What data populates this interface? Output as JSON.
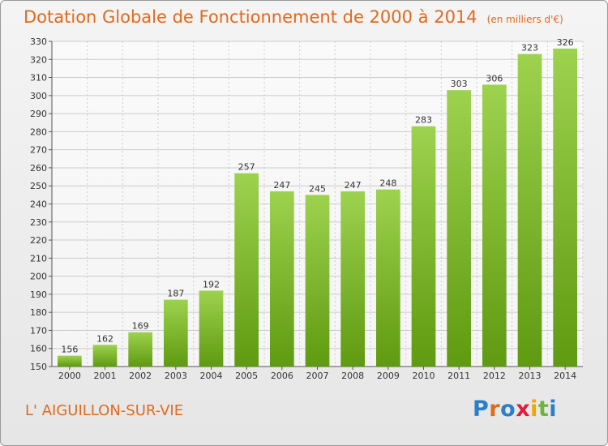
{
  "header": {
    "title": "Dotation Globale de Fonctionnement de 2000 à 2014",
    "unit": "(en milliers d'€)"
  },
  "footer": {
    "city": "L' AIGUILLON-SUR-VIE",
    "logo": "Proxiti"
  },
  "colors": {
    "title": "#e06a1c",
    "bar_top": "#9dd24e",
    "bar_bottom": "#5f9a10",
    "grid": "#cccccc",
    "logo_letters": [
      "#2a7fc9",
      "#e06a1c",
      "#2a7fc9",
      "#e21c3c",
      "#f0a500",
      "#6db33f",
      "#2a7fc9"
    ]
  },
  "chart_data": {
    "type": "bar",
    "title": "Dotation Globale de Fonctionnement de 2000 à 2014",
    "subtitle": "(en milliers d'€)",
    "xlabel": "",
    "ylabel": "",
    "categories": [
      "2000",
      "2001",
      "2002",
      "2003",
      "2004",
      "2005",
      "2006",
      "2007",
      "2008",
      "2009",
      "2010",
      "2011",
      "2012",
      "2013",
      "2014"
    ],
    "values": [
      156,
      162,
      169,
      187,
      192,
      257,
      247,
      245,
      247,
      248,
      283,
      303,
      306,
      323,
      326
    ],
    "ylim": [
      150,
      330
    ],
    "yticks": [
      150,
      160,
      170,
      180,
      190,
      200,
      210,
      220,
      230,
      240,
      250,
      260,
      270,
      280,
      290,
      300,
      310,
      320,
      330
    ],
    "grid": true,
    "legend": "none"
  }
}
